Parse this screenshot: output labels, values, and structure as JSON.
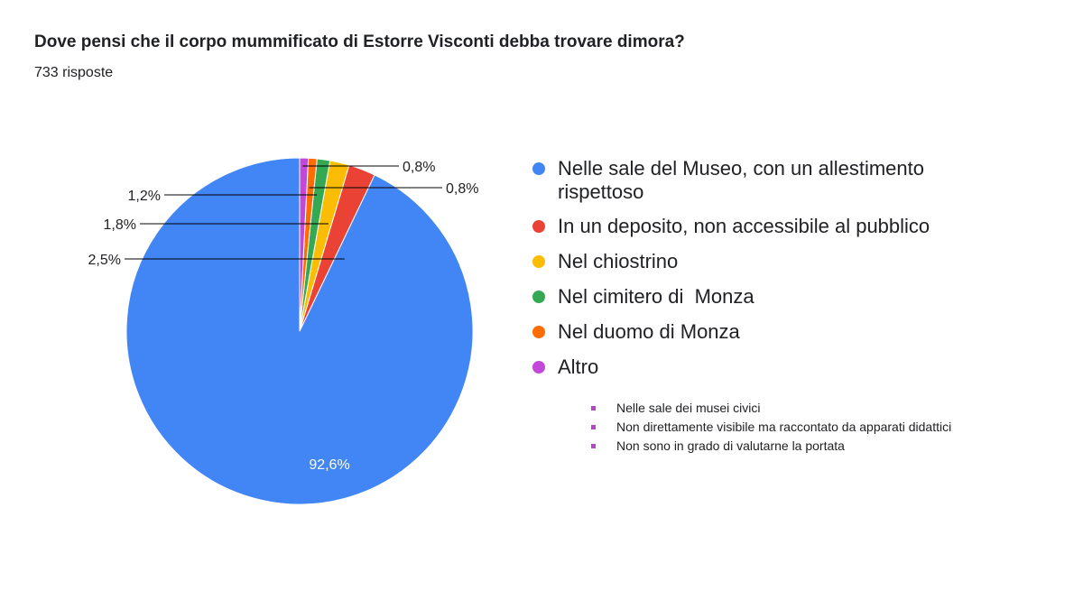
{
  "chart_data": {
    "type": "pie",
    "title": "Dove pensi che il corpo mummificato di Estorre Visconti debba trovare dimora?",
    "subtitle": "733 risposte",
    "legend_position": "right",
    "slices": [
      {
        "label": "Nelle sale del Museo, con un allestimento rispettoso",
        "value": 92.6,
        "display": "92,6%",
        "color": "#4285f4"
      },
      {
        "label": "In un deposito, non accessibile al pubblico",
        "value": 2.5,
        "display": "2,5%",
        "color": "#ea4335"
      },
      {
        "label": "Nel chiostrino",
        "value": 1.8,
        "display": "1,8%",
        "color": "#fbbc04"
      },
      {
        "label": "Nel cimitero di  Monza",
        "value": 1.2,
        "display": "1,2%",
        "color": "#34a853"
      },
      {
        "label": "Nel duomo di Monza",
        "value": 0.8,
        "display": "0,8%",
        "color": "#ff6d01"
      },
      {
        "label": "Altro",
        "value": 0.8,
        "display": "0,8%",
        "color": "#c348d9"
      }
    ],
    "other_breakdown": [
      "Nelle sale dei musei civici",
      "Non direttamente visibile ma raccontato da apparati didattici",
      "Non sono in grado di valutarne la portata"
    ]
  }
}
